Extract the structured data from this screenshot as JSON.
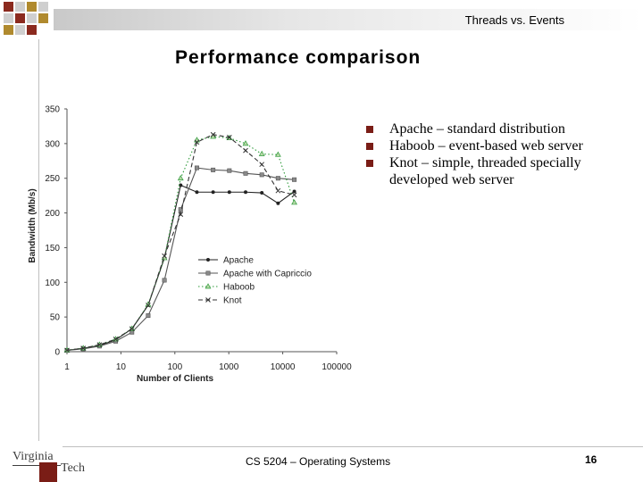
{
  "header": {
    "title": "Threads vs. Events"
  },
  "slide": {
    "title": "Performance comparison"
  },
  "bullets": [
    "Apache – standard distribution",
    "Haboob – event-based web server",
    "Knot – simple, threaded specially developed web server"
  ],
  "footer": {
    "course": "CS 5204 – Operating Systems",
    "page": "16"
  },
  "logo": {
    "text_virginia": "Virginia",
    "text_tech": "Tech"
  },
  "colors": {
    "accent": "#7a1d16",
    "haboob": "#2e9a3a"
  },
  "chart_data": {
    "type": "line",
    "xlabel": "Number of Clients",
    "ylabel": "Bandwidth (Mb/s)",
    "x_scale": "log",
    "xlim": [
      1,
      100000
    ],
    "ylim": [
      0,
      350
    ],
    "xticks": [
      "1",
      "10",
      "100",
      "1000",
      "10000",
      "100000"
    ],
    "yticks": [
      "0",
      "50",
      "100",
      "150",
      "200",
      "250",
      "300",
      "350"
    ],
    "legend_position": "center-left",
    "grid": false,
    "series": [
      {
        "name": "Apache",
        "color": "#222222",
        "dash": "solid",
        "marker": "dot",
        "x": [
          1,
          2,
          4,
          8,
          16,
          32,
          64,
          128,
          256,
          512,
          1024,
          2048,
          4096,
          8192,
          16384
        ],
        "y": [
          2,
          5,
          9,
          17,
          33,
          67,
          135,
          240,
          230,
          230,
          230,
          230,
          229,
          214,
          231
        ]
      },
      {
        "name": "Apache with Capriccio",
        "color": "#555555",
        "dash": "solid",
        "marker": "square",
        "x": [
          1,
          2,
          4,
          8,
          16,
          32,
          64,
          128,
          256,
          512,
          1024,
          2048,
          4096,
          8192,
          16384
        ],
        "y": [
          2,
          4,
          8,
          15,
          28,
          52,
          103,
          205,
          265,
          262,
          261,
          257,
          255,
          250,
          248
        ]
      },
      {
        "name": "Haboob",
        "color": "#2e9a3a",
        "dash": "dotted",
        "marker": "triangle",
        "x": [
          1,
          2,
          4,
          8,
          16,
          32,
          64,
          128,
          256,
          512,
          1024,
          2048,
          4096,
          8192,
          16384
        ],
        "y": [
          2,
          5,
          10,
          18,
          33,
          68,
          135,
          250,
          305,
          310,
          308,
          300,
          285,
          284,
          215
        ]
      },
      {
        "name": "Knot",
        "color": "#333333",
        "dash": "dashed",
        "marker": "cross",
        "x": [
          1,
          2,
          4,
          8,
          16,
          32,
          64,
          128,
          256,
          512,
          1024,
          2048,
          4096,
          8192,
          16384
        ],
        "y": [
          2,
          5,
          10,
          18,
          33,
          67,
          138,
          198,
          302,
          313,
          309,
          290,
          270,
          232,
          226
        ]
      }
    ]
  }
}
